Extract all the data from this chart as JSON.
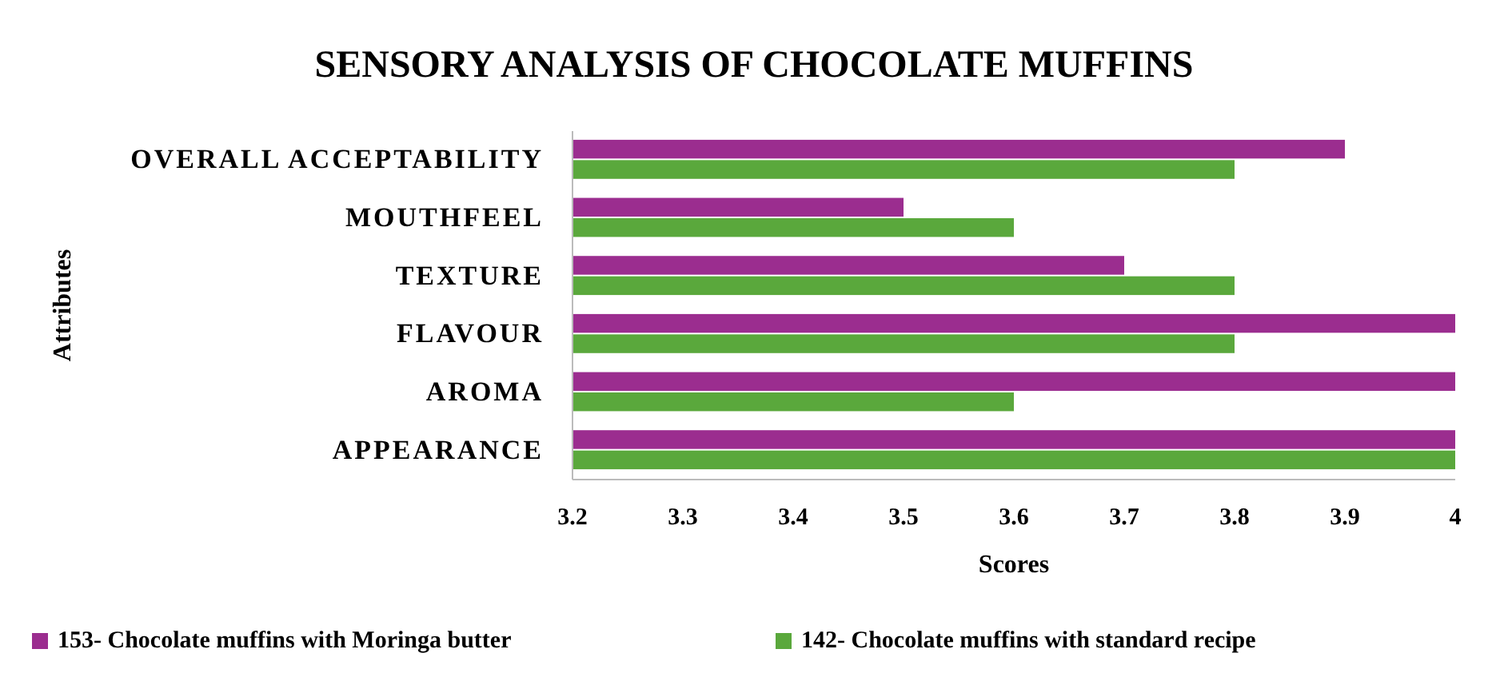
{
  "chart_data": {
    "type": "bar",
    "orientation": "horizontal",
    "title": "SENSORY ANALYSIS  OF CHOCOLATE  MUFFINS",
    "xlabel": "Scores",
    "ylabel": "Attributes",
    "categories": [
      "OVERALL ACCEPTABILITY",
      "MOUTHFEEL",
      "TEXTURE",
      "FLAVOUR",
      "AROMA",
      "APPEARANCE"
    ],
    "series": [
      {
        "name": "153- Chocolate muffins with Moringa butter",
        "color": "#9b2d8f",
        "values": [
          3.9,
          3.5,
          3.7,
          4,
          4,
          4
        ]
      },
      {
        "name": "142- Chocolate muffins with standard recipe",
        "color": "#5aa83c",
        "values": [
          3.8,
          3.6,
          3.8,
          3.8,
          3.6,
          4
        ]
      }
    ],
    "xlim": [
      3.2,
      4
    ],
    "xticks": [
      3.2,
      3.3,
      3.4,
      3.5,
      3.6,
      3.7,
      3.8,
      3.9,
      4
    ],
    "grid": false,
    "legend": "bottom"
  }
}
